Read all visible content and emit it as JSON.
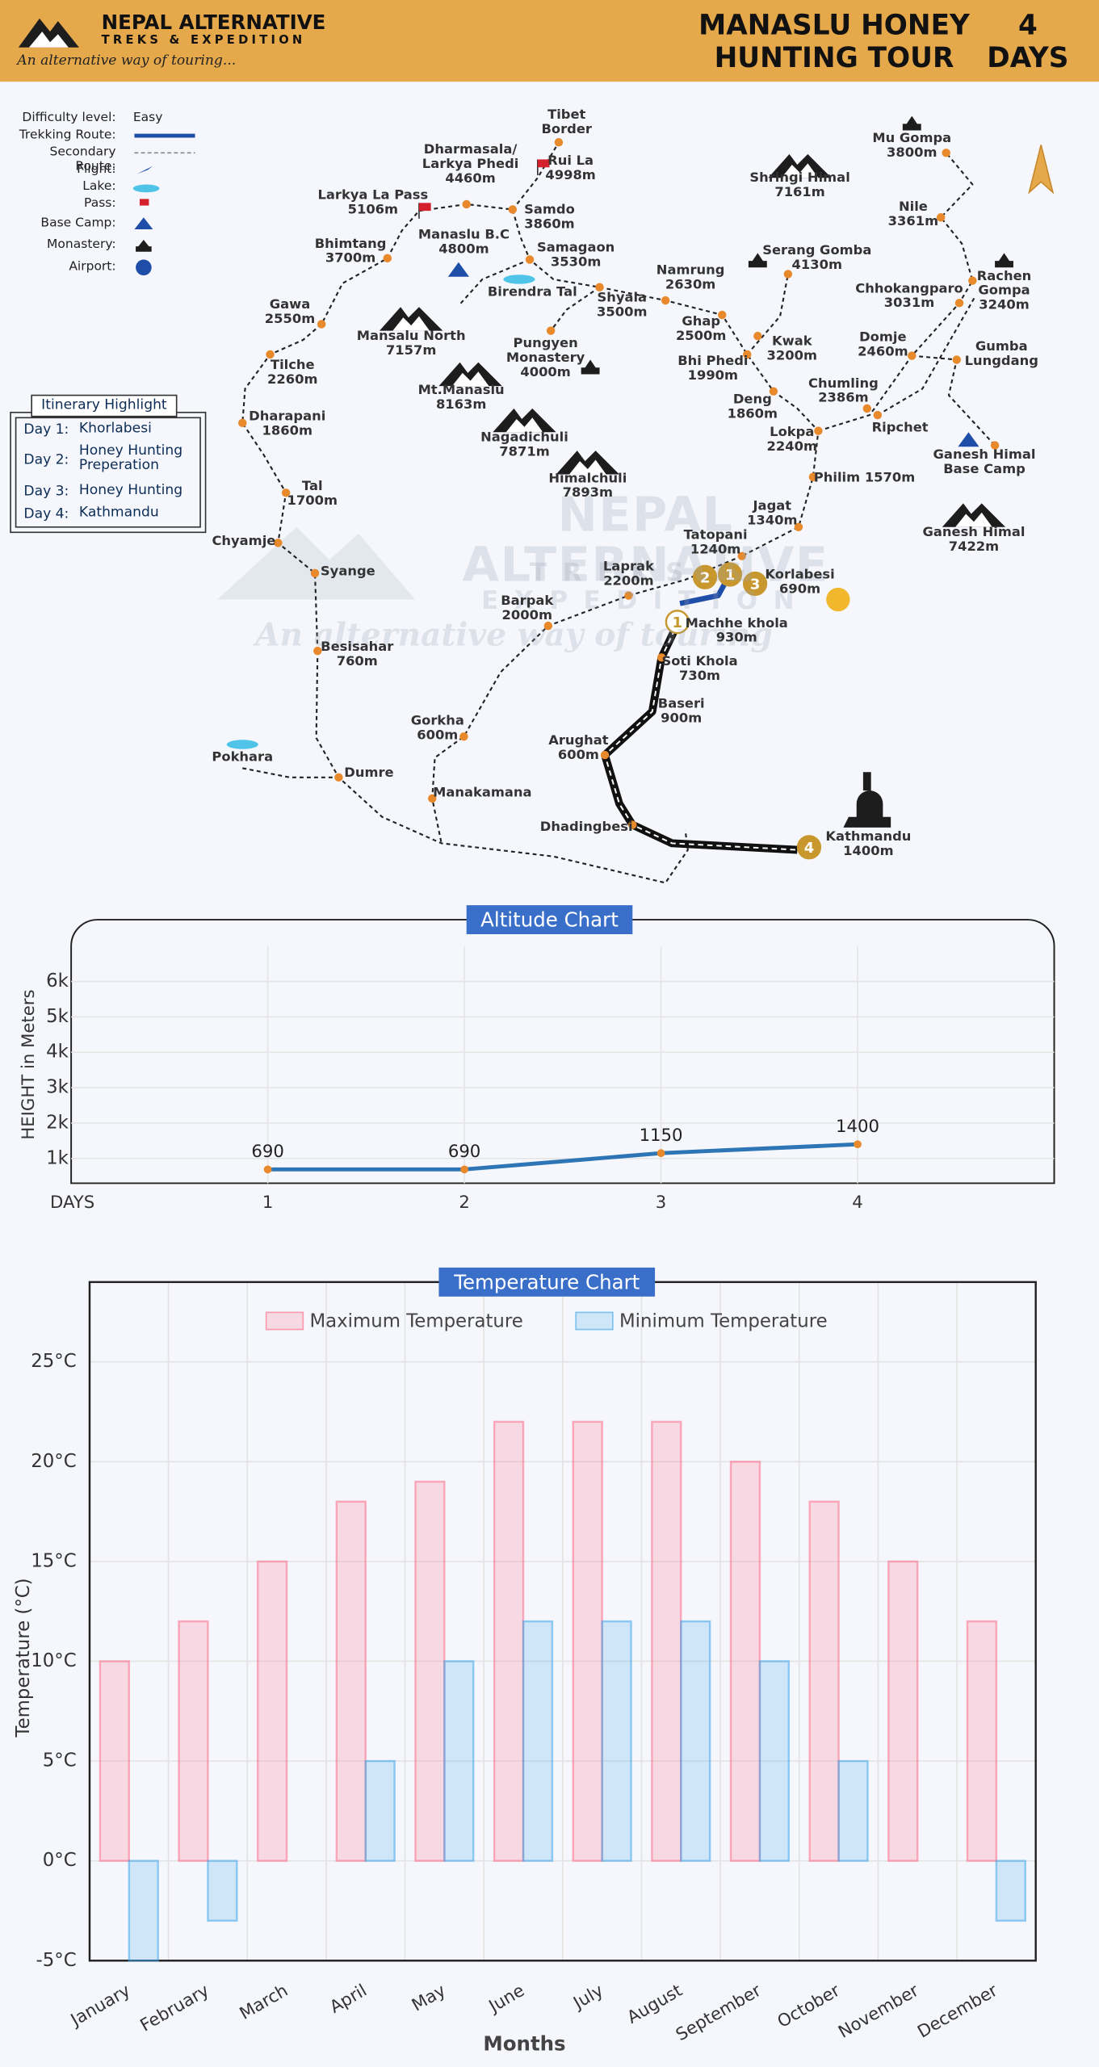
{
  "header": {
    "brand": "NEPAL ALTERNATIVE",
    "subbrand": "TREKS & EXPEDITION",
    "slogan": "An alternative way of touring...",
    "title": "MANASLU HONEY\nHUNTING TOUR",
    "duration": "4\nDAYS"
  },
  "legend": {
    "labels": [
      "Difficulty level:",
      "Trekking Route:",
      "Secondary Route:",
      "Flight:",
      "Lake:",
      "Pass:",
      "Base Camp:",
      "Monastery:",
      "Airport:"
    ],
    "difficulty": "Easy"
  },
  "itinerary": {
    "title": "Itinerary Highlight",
    "days": [
      {
        "day": "Day 1:",
        "place": "Khorlabesi"
      },
      {
        "day": "Day 2:",
        "place": "Honey Hunting\nPreperation"
      },
      {
        "day": "Day 3:",
        "place": "Honey Hunting"
      },
      {
        "day": "Day 4:",
        "place": "Kathmandu"
      }
    ]
  },
  "map": {
    "places": [
      "Tibet\nBorder",
      "Rui La\n4998m",
      "Dharmasala/\nLarkya Phedi\n4460m",
      "Larkya La Pass\n5106m",
      "Samdo\n3860m",
      "Bhimtang\n3700m",
      "Manaslu B.C\n4800m",
      "Samagaon\n3530m",
      "Birendra Tal",
      "Gawa\n2550m",
      "Shyala\n3500m",
      "Namrung\n2630m",
      "Ghap\n2500m",
      "Pungyen\nMonastery\n4000m",
      "Mansalu North\n7157m",
      "Tilche\n2260m",
      "Mt.Manaslu\n8163m",
      "Dharapani\n1860m",
      "Nagadichuli\n7871m",
      "Himalchuli\n7893m",
      "Tal\n1700m",
      "Chyamje",
      "Syange",
      "Besisahar\n760m",
      "Pokhara",
      "Dumre",
      "Gorkha\n600m",
      "Manakamana",
      "Barpak\n2000m",
      "Laprak\n2200m",
      "Tatopani\n1240m",
      "Korlabesi\n690m",
      "Machhe khola\n930m",
      "Soti Khola\n730m",
      "Baseri\n900m",
      "Arughat\n600m",
      "Dhadingbesi",
      "Kathmandu\n1400m",
      "Jagat\n1340m",
      "Philim 1570m",
      "Lokpa\n2240m",
      "Deng\n1860m",
      "Bhi Phedi\n1990m",
      "Kwak\n3200m",
      "Serang Gomba\n4130m",
      "Shringi Himal\n7161m",
      "Chumling\n2386m",
      "Ripchet",
      "Domje\n2460m",
      "Chhokangparo\n3031m",
      "Nile\n3361m",
      "Mu Gompa\n3800m",
      "Rachen\nGompa\n3240m",
      "Gumba\nLungdang",
      "Ganesh Himal\nBase Camp",
      "Ganesh Himal\n7422m"
    ],
    "stops": [
      "2",
      "1",
      "3",
      "1",
      "4"
    ],
    "watermark": [
      "NEPAL ALTERNATIVE",
      "TREKS & EXPEDITION",
      "An alternative way of touring"
    ]
  },
  "chart_data": [
    {
      "type": "line",
      "title": "Altitude Chart",
      "x_label": "DAYS",
      "y_label": "HEIGHT in Meters",
      "x": [
        1,
        2,
        3,
        4
      ],
      "series": [
        {
          "name": "Altitude",
          "color": "#2e75b6",
          "values": [
            690,
            690,
            1150,
            1400
          ]
        }
      ],
      "point_color": "#e8892b",
      "xlim": [
        0,
        5
      ],
      "xticks": [
        1,
        2,
        3,
        4
      ],
      "ylim": [
        300,
        7000
      ],
      "yticks": [
        {
          "value": 1000,
          "label": "1k"
        },
        {
          "value": 2000,
          "label": "2k"
        },
        {
          "value": 3000,
          "label": "3k"
        },
        {
          "value": 4000,
          "label": "4k"
        },
        {
          "value": 5000,
          "label": "5k"
        },
        {
          "value": 6000,
          "label": "6k"
        }
      ],
      "grid": true
    },
    {
      "type": "bar",
      "title": "Temperature Chart",
      "x_label": "Months",
      "y_label": "Temperature (°C)",
      "categories": [
        "January",
        "February",
        "March",
        "April",
        "May",
        "June",
        "July",
        "August",
        "September",
        "October",
        "November",
        "December"
      ],
      "series": [
        {
          "name": "Maximum Temperature",
          "color": "#ff6384",
          "values": [
            10,
            12,
            15,
            18,
            19,
            22,
            22,
            22,
            20,
            18,
            15,
            12
          ]
        },
        {
          "name": "Minimum Temperature",
          "color": "#36a2eb",
          "values": [
            -5,
            -3,
            0,
            5,
            10,
            12,
            12,
            12,
            10,
            5,
            0,
            -3
          ]
        }
      ],
      "ylim": [
        -5,
        29
      ],
      "yticks": [
        {
          "value": -5,
          "label": "-5°C"
        },
        {
          "value": 0,
          "label": "0°C"
        },
        {
          "value": 5,
          "label": "5°C"
        },
        {
          "value": 10,
          "label": "10°C"
        },
        {
          "value": 15,
          "label": "15°C"
        },
        {
          "value": 20,
          "label": "20°C"
        },
        {
          "value": 25,
          "label": "25°C"
        }
      ],
      "grid": true,
      "legend": "top"
    }
  ]
}
